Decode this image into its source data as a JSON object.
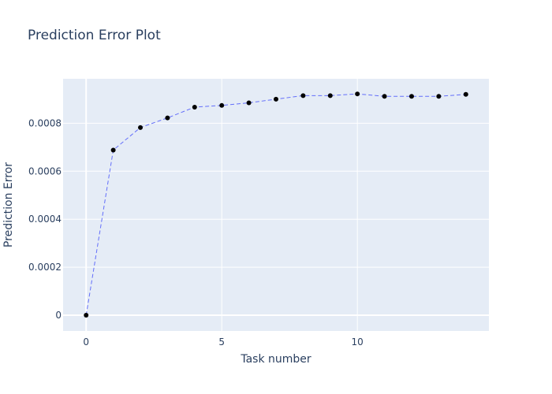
{
  "chart_data": {
    "type": "line",
    "title": "Prediction Error Plot",
    "xlabel": "Task number",
    "ylabel": "Prediction Error",
    "x": [
      0,
      1,
      2,
      3,
      4,
      5,
      6,
      7,
      8,
      9,
      10,
      11,
      12,
      13,
      14
    ],
    "series": [
      {
        "values": [
          0,
          0.000688,
          0.000782,
          0.000822,
          0.000867,
          0.000874,
          0.000885,
          0.0009,
          0.000915,
          0.000915,
          0.000922,
          0.000912,
          0.000912,
          0.000912,
          0.00092
        ],
        "line_color": "#636efa",
        "line_style": "dashed",
        "marker_color": "#000000"
      }
    ],
    "xlim": [
      -0.85,
      14.85
    ],
    "ylim": [
      -6.55e-05,
      0.000985
    ],
    "x_ticks": [
      0,
      5,
      10
    ],
    "x_tick_labels": [
      "0",
      "5",
      "10"
    ],
    "y_ticks": [
      0,
      0.0002,
      0.0004,
      0.0006,
      0.0008
    ],
    "y_tick_labels": [
      "0",
      "0.0002",
      "0.0004",
      "0.0006",
      "0.0008"
    ],
    "grid": true,
    "legend": "none",
    "colors": {
      "plot_background": "#e5ecf6",
      "grid": "#ffffff",
      "text": "#2a3f5f"
    }
  }
}
